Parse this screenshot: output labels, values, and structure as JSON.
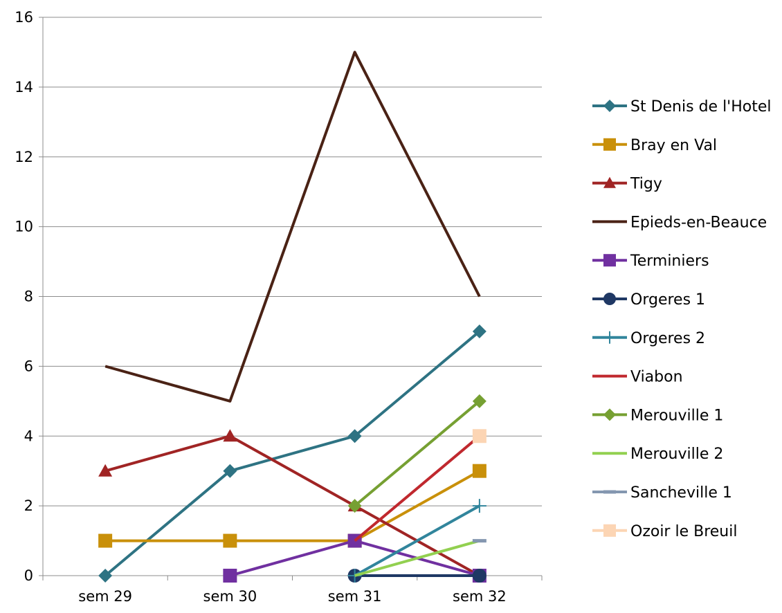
{
  "chart_data": {
    "type": "line",
    "title": "",
    "xlabel": "",
    "ylabel": "",
    "categories": [
      "sem 29",
      "sem 30",
      "sem 31",
      "sem 32"
    ],
    "ylim": [
      0,
      16
    ],
    "yticks": [
      "0",
      "2",
      "4",
      "6",
      "8",
      "10",
      "12",
      "14",
      "16"
    ],
    "grid": "horizontal",
    "legend_position": "right",
    "series": [
      {
        "name": "St Denis de l'Hotel",
        "color": "#2E7383",
        "marker": "diamond",
        "values": [
          0,
          3,
          4,
          7
        ]
      },
      {
        "name": "Bray en Val",
        "color": "#C9900A",
        "marker": "square",
        "values": [
          1,
          1,
          1,
          3
        ]
      },
      {
        "name": "Tigy",
        "color": "#A02424",
        "marker": "triangle",
        "values": [
          3,
          4,
          2,
          0
        ]
      },
      {
        "name": "Epieds-en-Beauce",
        "color": "#4A2215",
        "marker": "none",
        "values": [
          6,
          5,
          15,
          8
        ]
      },
      {
        "name": "Terminiers",
        "color": "#7030A0",
        "marker": "square",
        "values": [
          null,
          0,
          1,
          0
        ]
      },
      {
        "name": "Orgeres 1",
        "color": "#1F3864",
        "marker": "circle",
        "values": [
          null,
          null,
          0,
          0
        ]
      },
      {
        "name": "Orgeres 2",
        "color": "#31859C",
        "marker": "plus",
        "values": [
          null,
          null,
          0,
          2
        ]
      },
      {
        "name": "Viabon",
        "color": "#C0282E",
        "marker": "none",
        "values": [
          null,
          null,
          1,
          4
        ]
      },
      {
        "name": "Merouville 1",
        "color": "#76A032",
        "marker": "diamond",
        "values": [
          null,
          null,
          2,
          5
        ]
      },
      {
        "name": "Merouville 2",
        "color": "#92D050",
        "marker": "none",
        "values": [
          null,
          null,
          0,
          1
        ]
      },
      {
        "name": "Sancheville 1",
        "color": "#8497B0",
        "marker": "dash",
        "values": [
          null,
          null,
          null,
          1
        ]
      },
      {
        "name": "Ozoir le Breuil",
        "color": "#FCD5B4",
        "marker": "square",
        "values": [
          null,
          null,
          null,
          4
        ]
      }
    ]
  }
}
